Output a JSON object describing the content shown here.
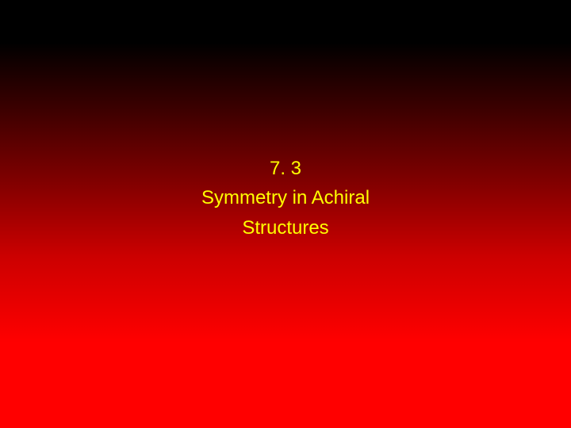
{
  "slide": {
    "section_number": "7. 3",
    "title_line1": "Symmetry in Achiral",
    "title_line2": "Structures",
    "text_color": "#ffff00",
    "font_size_pt": 24,
    "font_family": "Arial",
    "background_gradient_top": "#000000",
    "background_gradient_bottom": "#ff0000"
  }
}
